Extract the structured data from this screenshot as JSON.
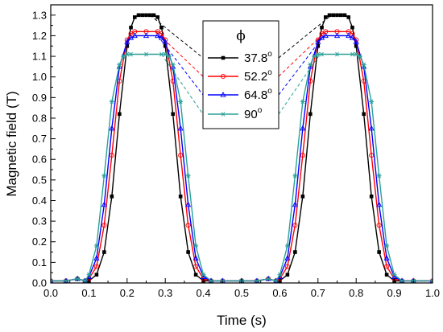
{
  "chart_data": {
    "type": "line",
    "title": "",
    "xlabel": "Time (s)",
    "ylabel": "Magnetic field (T)",
    "xlim": [
      0.0,
      1.0
    ],
    "ylim": [
      0.0,
      1.35
    ],
    "x_ticks": [
      "0.0",
      "0.1",
      "0.2",
      "0.3",
      "0.4",
      "0.5",
      "0.6",
      "0.7",
      "0.8",
      "0.9",
      "1.0"
    ],
    "y_ticks": [
      "0.0",
      "0.1",
      "0.2",
      "0.3",
      "0.4",
      "0.5",
      "0.6",
      "0.7",
      "0.8",
      "0.9",
      "1.0",
      "1.1",
      "1.2",
      "1.3"
    ],
    "grid": false,
    "legend": {
      "title": "ϕ",
      "placement": "top-center",
      "label_unit": "o"
    },
    "series": [
      {
        "name": "37.8",
        "color": "#000000",
        "marker": "filled-square",
        "x": [
          0.0,
          0.04,
          0.07,
          0.09,
          0.1,
          0.12,
          0.14,
          0.16,
          0.18,
          0.2,
          0.21,
          0.22,
          0.23,
          0.24,
          0.25,
          0.26,
          0.27,
          0.28,
          0.29,
          0.3,
          0.32,
          0.34,
          0.36,
          0.38,
          0.4,
          0.42,
          0.45,
          0.5,
          0.54,
          0.57,
          0.59,
          0.6,
          0.62,
          0.64,
          0.66,
          0.68,
          0.7,
          0.71,
          0.72,
          0.73,
          0.74,
          0.75,
          0.76,
          0.77,
          0.78,
          0.79,
          0.8,
          0.82,
          0.84,
          0.86,
          0.88,
          0.9,
          0.92,
          0.95,
          1.0
        ],
        "y": [
          0.01,
          0.01,
          0.02,
          0.01,
          0.01,
          0.04,
          0.15,
          0.42,
          0.82,
          1.15,
          1.24,
          1.29,
          1.3,
          1.3,
          1.3,
          1.3,
          1.3,
          1.29,
          1.24,
          1.15,
          0.82,
          0.42,
          0.15,
          0.04,
          0.01,
          0.01,
          0.01,
          0.01,
          0.01,
          0.02,
          0.01,
          0.01,
          0.04,
          0.15,
          0.42,
          0.82,
          1.15,
          1.24,
          1.29,
          1.3,
          1.3,
          1.3,
          1.3,
          1.3,
          1.29,
          1.24,
          1.15,
          0.82,
          0.42,
          0.15,
          0.04,
          0.01,
          0.01,
          0.01,
          0.01
        ]
      },
      {
        "name": "52.2",
        "color": "#ff0000",
        "marker": "open-circle",
        "x": [
          0.0,
          0.04,
          0.07,
          0.09,
          0.1,
          0.12,
          0.14,
          0.16,
          0.18,
          0.2,
          0.21,
          0.22,
          0.25,
          0.28,
          0.29,
          0.3,
          0.32,
          0.34,
          0.36,
          0.38,
          0.4,
          0.42,
          0.45,
          0.5,
          0.54,
          0.57,
          0.59,
          0.6,
          0.62,
          0.64,
          0.66,
          0.68,
          0.7,
          0.71,
          0.72,
          0.75,
          0.78,
          0.79,
          0.8,
          0.82,
          0.84,
          0.86,
          0.88,
          0.9,
          0.92,
          0.95,
          1.0
        ],
        "y": [
          0.01,
          0.01,
          0.02,
          0.01,
          0.02,
          0.08,
          0.28,
          0.62,
          0.98,
          1.18,
          1.21,
          1.22,
          1.22,
          1.22,
          1.21,
          1.18,
          0.98,
          0.62,
          0.28,
          0.08,
          0.02,
          0.01,
          0.01,
          0.01,
          0.01,
          0.02,
          0.01,
          0.02,
          0.08,
          0.28,
          0.62,
          0.98,
          1.18,
          1.21,
          1.22,
          1.22,
          1.22,
          1.21,
          1.18,
          0.98,
          0.62,
          0.28,
          0.08,
          0.02,
          0.01,
          0.01,
          0.01
        ]
      },
      {
        "name": "64.8",
        "color": "#0000ff",
        "marker": "open-triangle",
        "x": [
          0.0,
          0.04,
          0.07,
          0.09,
          0.1,
          0.12,
          0.14,
          0.16,
          0.18,
          0.2,
          0.21,
          0.22,
          0.25,
          0.28,
          0.29,
          0.3,
          0.32,
          0.34,
          0.36,
          0.38,
          0.4,
          0.42,
          0.45,
          0.5,
          0.54,
          0.57,
          0.59,
          0.6,
          0.62,
          0.64,
          0.66,
          0.68,
          0.7,
          0.71,
          0.72,
          0.75,
          0.78,
          0.79,
          0.8,
          0.82,
          0.84,
          0.86,
          0.88,
          0.9,
          0.92,
          0.95,
          1.0
        ],
        "y": [
          0.01,
          0.01,
          0.02,
          0.01,
          0.03,
          0.12,
          0.38,
          0.75,
          1.05,
          1.17,
          1.19,
          1.2,
          1.2,
          1.2,
          1.19,
          1.17,
          1.05,
          0.75,
          0.38,
          0.12,
          0.03,
          0.01,
          0.01,
          0.01,
          0.01,
          0.02,
          0.01,
          0.03,
          0.12,
          0.38,
          0.75,
          1.05,
          1.17,
          1.19,
          1.2,
          1.2,
          1.2,
          1.19,
          1.17,
          1.05,
          0.75,
          0.38,
          0.12,
          0.03,
          0.01,
          0.01,
          0.01
        ]
      },
      {
        "name": "90",
        "color": "#2aa198",
        "marker": "asterisk",
        "x": [
          0.0,
          0.04,
          0.07,
          0.09,
          0.1,
          0.12,
          0.14,
          0.16,
          0.18,
          0.19,
          0.2,
          0.21,
          0.25,
          0.29,
          0.3,
          0.31,
          0.32,
          0.34,
          0.36,
          0.38,
          0.4,
          0.42,
          0.45,
          0.5,
          0.54,
          0.57,
          0.59,
          0.6,
          0.62,
          0.64,
          0.66,
          0.68,
          0.69,
          0.7,
          0.71,
          0.75,
          0.79,
          0.8,
          0.81,
          0.82,
          0.84,
          0.86,
          0.88,
          0.9,
          0.92,
          0.95,
          1.0
        ],
        "y": [
          0.01,
          0.01,
          0.02,
          0.01,
          0.04,
          0.18,
          0.52,
          0.88,
          1.06,
          1.1,
          1.11,
          1.11,
          1.11,
          1.11,
          1.11,
          1.1,
          1.06,
          0.88,
          0.52,
          0.18,
          0.04,
          0.01,
          0.01,
          0.01,
          0.01,
          0.02,
          0.01,
          0.04,
          0.18,
          0.52,
          0.88,
          1.06,
          1.1,
          1.11,
          1.11,
          1.11,
          1.11,
          1.11,
          1.1,
          1.06,
          0.88,
          0.52,
          0.18,
          0.04,
          0.01,
          0.01,
          0.01
        ]
      }
    ]
  }
}
